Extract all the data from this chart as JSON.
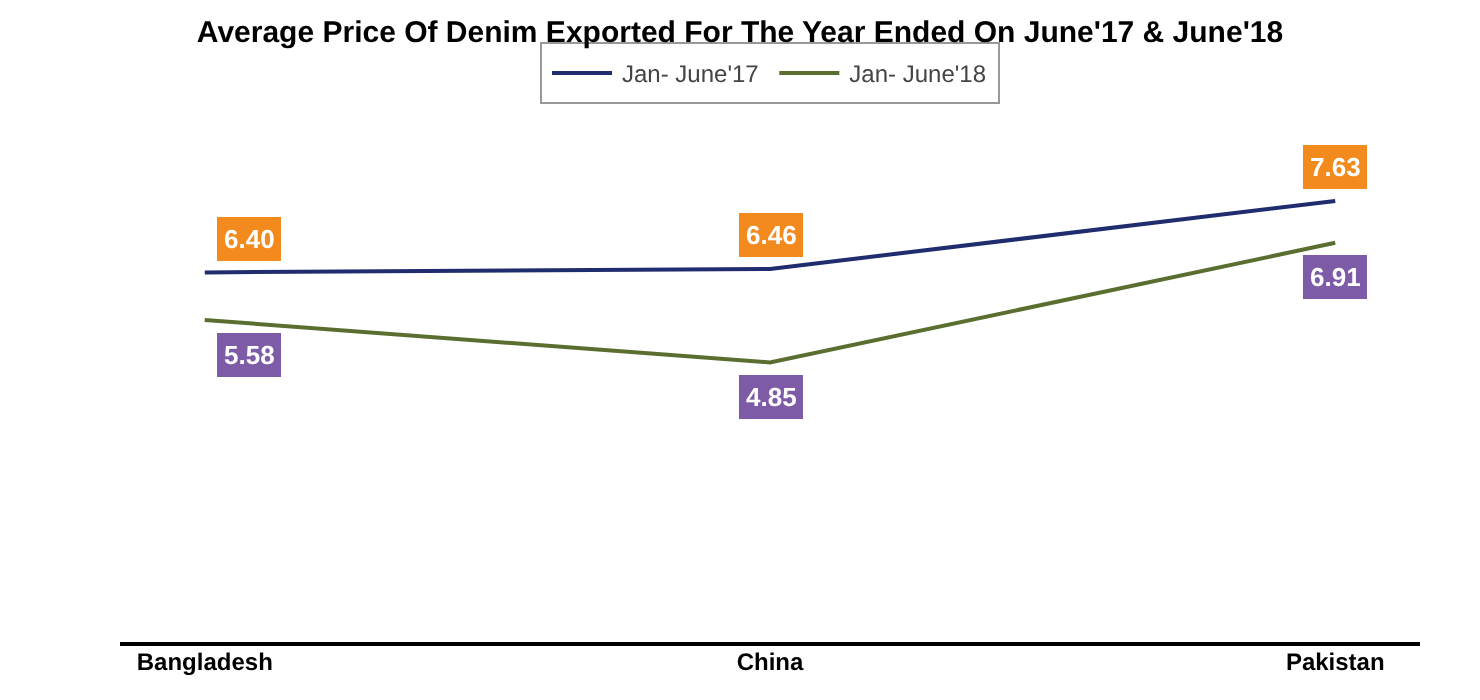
{
  "chart_data": {
    "type": "line",
    "title": "Average Price Of Denim Exported For The Year Ended On June'17 & June'18",
    "categories": [
      "Bangladesh",
      "China",
      "Pakistan"
    ],
    "series": [
      {
        "name": "Jan- June'17",
        "color": "#1f2d6e",
        "values": [
          6.4,
          6.46,
          7.63
        ],
        "value_labels": [
          "6.40",
          "6.46",
          "7.63"
        ]
      },
      {
        "name": "Jan- June'18",
        "color": "#5a6e2f",
        "values": [
          5.58,
          4.85,
          6.91
        ],
        "value_labels": [
          "5.58",
          "4.85",
          "6.91"
        ]
      }
    ],
    "tick_labels": "x",
    "legend": "top",
    "grid": false,
    "line_style": "solid"
  }
}
